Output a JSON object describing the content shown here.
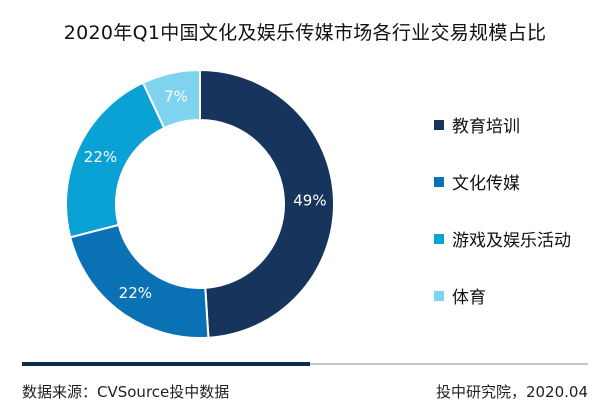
{
  "chart_data": {
    "type": "pie",
    "title": "2020年Q1中国文化及娱乐传媒市场各行业交易规模占比",
    "categories": [
      "教育培训",
      "文化传媒",
      "游戏及娱乐活动",
      "体育"
    ],
    "values": [
      49,
      22,
      22,
      7
    ],
    "value_labels": [
      "49%",
      "22%",
      "22%",
      "7%"
    ],
    "colors": [
      "#17355c",
      "#0b71b5",
      "#0aa1d4",
      "#7fd3ef"
    ],
    "donut": true,
    "legend_position": "right"
  },
  "footer": {
    "source": "数据来源：CVSource投中数据",
    "credit": "投中研究院，2020.04"
  }
}
